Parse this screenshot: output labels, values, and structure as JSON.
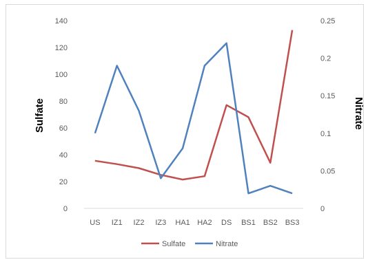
{
  "chart_data": {
    "type": "line",
    "title": "",
    "categories": [
      "US",
      "IZ1",
      "IZ2",
      "IZ3",
      "HA1",
      "HA2",
      "DS",
      "BS1",
      "BS2",
      "BS3"
    ],
    "y_left": {
      "label": "Sulfate",
      "ylim": [
        0,
        140
      ],
      "ticks": [
        0,
        20,
        40,
        60,
        80,
        100,
        120,
        140
      ]
    },
    "y_right": {
      "label": "Nitrate",
      "ylim": [
        0,
        0.25
      ],
      "ticks": [
        "0",
        "0.05",
        "0.1",
        "0.15",
        "0.2",
        "0.25"
      ]
    },
    "series": [
      {
        "name": "Sulfate",
        "axis": "left",
        "color": "#c0504d",
        "values": [
          35.5,
          33,
          30,
          25,
          21.5,
          24,
          77,
          68,
          34,
          133
        ]
      },
      {
        "name": "Nitrate",
        "axis": "right",
        "color": "#4f81bd",
        "values": [
          0.1,
          0.19,
          0.13,
          0.04,
          0.08,
          0.19,
          0.22,
          0.02,
          0.03,
          0.02
        ]
      }
    ],
    "grid": false,
    "legend_position": "bottom"
  }
}
